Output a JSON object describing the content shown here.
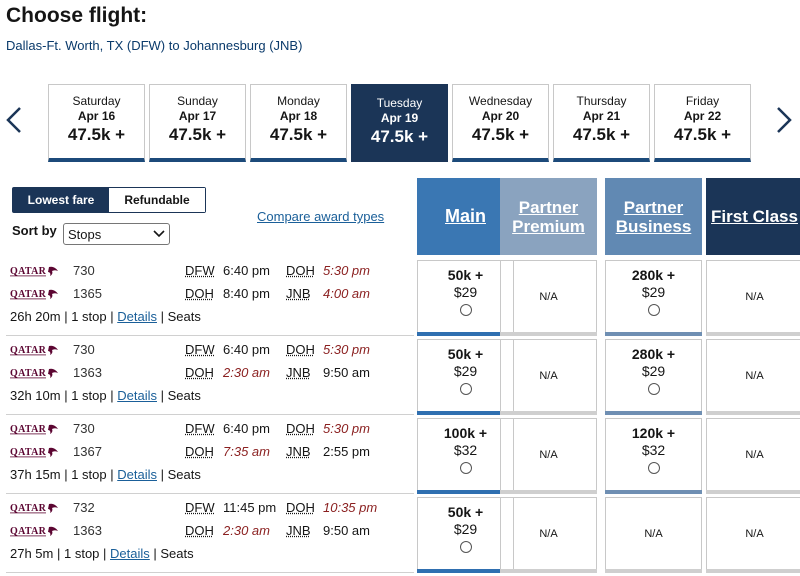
{
  "header": {
    "title": "Choose flight:",
    "route": "Dallas-Ft. Worth, TX (DFW) to Johannesburg (JNB)"
  },
  "dates": [
    {
      "dow": "Saturday",
      "md": "Apr 16",
      "price": "47.5k +",
      "selected": false
    },
    {
      "dow": "Sunday",
      "md": "Apr 17",
      "price": "47.5k +",
      "selected": false
    },
    {
      "dow": "Monday",
      "md": "Apr 18",
      "price": "47.5k +",
      "selected": false
    },
    {
      "dow": "Tuesday",
      "md": "Apr 19",
      "price": "47.5k +",
      "selected": true
    },
    {
      "dow": "Wednesday",
      "md": "Apr 20",
      "price": "47.5k +",
      "selected": false
    },
    {
      "dow": "Thursday",
      "md": "Apr 21",
      "price": "47.5k +",
      "selected": false
    },
    {
      "dow": "Friday",
      "md": "Apr 22",
      "price": "47.5k +",
      "selected": false
    }
  ],
  "controls": {
    "lowest_fare": "Lowest fare",
    "refundable": "Refundable",
    "sort_label": "Sort by",
    "sort_value": "Stops",
    "compare_link": "Compare award types"
  },
  "cabins": [
    {
      "label": "Main",
      "color": "#3a77b3"
    },
    {
      "label": "Partner Premium",
      "color": "#8aa3bf"
    },
    {
      "label": "Partner Business",
      "color": "#6189b3"
    },
    {
      "label": "First Class",
      "color": "#1b3557"
    }
  ],
  "colors": {
    "main_bar": "#2f6fb0",
    "business_bar": "#6f8fb3",
    "na_bar": "#cfcfcf",
    "red_time": "#8a1f1f"
  },
  "airline_logo": "qatar-airways-logo",
  "separators": {
    "stop_sep": "|",
    "seats_sep": "|",
    "na": "N/A"
  },
  "flights": [
    {
      "segments": [
        {
          "fnum": "730",
          "from": "DFW",
          "dep": "6:40 pm",
          "dep_red": false,
          "to": "DOH",
          "arr": "5:30 pm",
          "arr_red": true
        },
        {
          "fnum": "1365",
          "from": "DOH",
          "dep": "8:40 pm",
          "dep_red": false,
          "to": "JNB",
          "arr": "4:00 am",
          "arr_red": true
        }
      ],
      "duration": "26h 20m",
      "stops": "1 stop",
      "details": "Details",
      "seats": "Seats",
      "fares": [
        {
          "pts": "50k +",
          "tax": "$29"
        },
        null,
        {
          "pts": "280k +",
          "tax": "$29"
        },
        null
      ]
    },
    {
      "segments": [
        {
          "fnum": "730",
          "from": "DFW",
          "dep": "6:40 pm",
          "dep_red": false,
          "to": "DOH",
          "arr": "5:30 pm",
          "arr_red": true
        },
        {
          "fnum": "1363",
          "from": "DOH",
          "dep": "2:30 am",
          "dep_red": true,
          "to": "JNB",
          "arr": "9:50 am",
          "arr_red": false
        }
      ],
      "duration": "32h 10m",
      "stops": "1 stop",
      "details": "Details",
      "seats": "Seats",
      "fares": [
        {
          "pts": "50k +",
          "tax": "$29"
        },
        null,
        {
          "pts": "280k +",
          "tax": "$29"
        },
        null
      ]
    },
    {
      "segments": [
        {
          "fnum": "730",
          "from": "DFW",
          "dep": "6:40 pm",
          "dep_red": false,
          "to": "DOH",
          "arr": "5:30 pm",
          "arr_red": true
        },
        {
          "fnum": "1367",
          "from": "DOH",
          "dep": "7:35 am",
          "dep_red": true,
          "to": "JNB",
          "arr": "2:55 pm",
          "arr_red": false
        }
      ],
      "duration": "37h 15m",
      "stops": "1 stop",
      "details": "Details",
      "seats": "Seats",
      "fares": [
        {
          "pts": "100k +",
          "tax": "$32"
        },
        null,
        {
          "pts": "120k +",
          "tax": "$32"
        },
        null
      ]
    },
    {
      "segments": [
        {
          "fnum": "732",
          "from": "DFW",
          "dep": "11:45 pm",
          "dep_red": false,
          "to": "DOH",
          "arr": "10:35 pm",
          "arr_red": true
        },
        {
          "fnum": "1363",
          "from": "DOH",
          "dep": "2:30 am",
          "dep_red": true,
          "to": "JNB",
          "arr": "9:50 am",
          "arr_red": false
        }
      ],
      "duration": "27h 5m",
      "stops": "1 stop",
      "details": "Details",
      "seats": "Seats",
      "fares": [
        {
          "pts": "50k +",
          "tax": "$29"
        },
        null,
        null,
        null
      ]
    }
  ]
}
